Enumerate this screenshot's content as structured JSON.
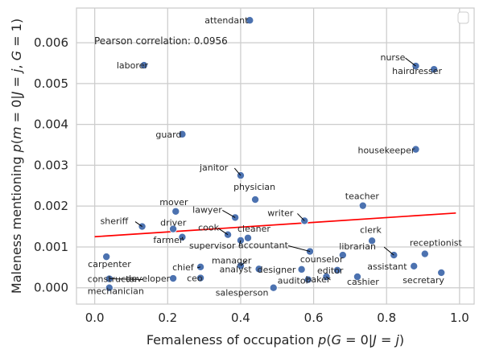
{
  "chart_data": {
    "type": "scatter",
    "xlabel": "Femaleness of occupation p(G = 0|J = j)",
    "ylabel": "Maleness mentioning p(m = 0|J = j, G = 1)",
    "xlim": [
      -0.05,
      1.04
    ],
    "ylim": [
      -0.0004,
      0.00685
    ],
    "xticks": [
      "0.0",
      "0.2",
      "0.4",
      "0.6",
      "0.8",
      "1.0"
    ],
    "yticks": [
      "0.000",
      "0.001",
      "0.002",
      "0.003",
      "0.004",
      "0.005",
      "0.006"
    ],
    "grid": true,
    "legend": "top-right (empty)",
    "annotation": "Pearson correlation: 0.0956",
    "marker_color": "#4c72b0",
    "trend_color": "#ff0000",
    "trend_line": {
      "x": [
        0.0,
        0.99
      ],
      "y": [
        0.00125,
        0.00183
      ]
    },
    "points": [
      {
        "label": "attendant",
        "x": 0.425,
        "y": 0.00655
      },
      {
        "label": "laborer",
        "x": 0.135,
        "y": 0.00545
      },
      {
        "label": "nurse",
        "x": 0.88,
        "y": 0.00543
      },
      {
        "label": "hairdresser",
        "x": 0.93,
        "y": 0.00535
      },
      {
        "label": "guard",
        "x": 0.24,
        "y": 0.00376
      },
      {
        "label": "housekeeper",
        "x": 0.88,
        "y": 0.00339
      },
      {
        "label": "janitor",
        "x": 0.4,
        "y": 0.00275
      },
      {
        "label": "physician",
        "x": 0.44,
        "y": 0.00216
      },
      {
        "label": "teacher",
        "x": 0.735,
        "y": 0.00201
      },
      {
        "label": "mover",
        "x": 0.222,
        "y": 0.00187
      },
      {
        "label": "lawyer",
        "x": 0.385,
        "y": 0.00172
      },
      {
        "label": "writer",
        "x": 0.575,
        "y": 0.00164
      },
      {
        "label": "sheriff",
        "x": 0.13,
        "y": 0.0015
      },
      {
        "label": "driver",
        "x": 0.215,
        "y": 0.00144
      },
      {
        "label": "clerk",
        "x": 0.76,
        "y": 0.00115
      },
      {
        "label": "cook",
        "x": 0.365,
        "y": 0.0013
      },
      {
        "label": "farmer",
        "x": 0.24,
        "y": 0.00124
      },
      {
        "label": "cleaner",
        "x": 0.42,
        "y": 0.00122
      },
      {
        "label": "supervisor",
        "x": 0.4,
        "y": 0.00116
      },
      {
        "label": "accountant",
        "x": 0.59,
        "y": 0.00089
      },
      {
        "label": "librarian",
        "x": 0.82,
        "y": 0.0008
      },
      {
        "label": "receptionist",
        "x": 0.905,
        "y": 0.00083
      },
      {
        "label": "counselor",
        "x": 0.68,
        "y": 0.0008
      },
      {
        "label": "carpenter",
        "x": 0.032,
        "y": 0.00076
      },
      {
        "label": "chief",
        "x": 0.29,
        "y": 0.00051
      },
      {
        "label": "manager",
        "x": 0.4,
        "y": 0.00054
      },
      {
        "label": "assistant",
        "x": 0.875,
        "y": 0.00053
      },
      {
        "label": "analyst",
        "x": 0.45,
        "y": 0.00046
      },
      {
        "label": "designer",
        "x": 0.567,
        "y": 0.00045
      },
      {
        "label": "editor",
        "x": 0.665,
        "y": 0.00043
      },
      {
        "label": "secretary",
        "x": 0.95,
        "y": 0.00037
      },
      {
        "label": "baker",
        "x": 0.635,
        "y": 0.00027
      },
      {
        "label": "cashier",
        "x": 0.72,
        "y": 0.00027
      },
      {
        "label": "constructor",
        "x": 0.04,
        "y": 0.00022
      },
      {
        "label": "developer",
        "x": 0.215,
        "y": 0.00023
      },
      {
        "label": "ceo",
        "x": 0.29,
        "y": 0.00024
      },
      {
        "label": "auditor",
        "x": 0.585,
        "y": 0.0002
      },
      {
        "label": "mechanician",
        "x": 0.04,
        "y": 0.0
      },
      {
        "label": "salesperson",
        "x": 0.49,
        "y": 0.0
      }
    ]
  }
}
